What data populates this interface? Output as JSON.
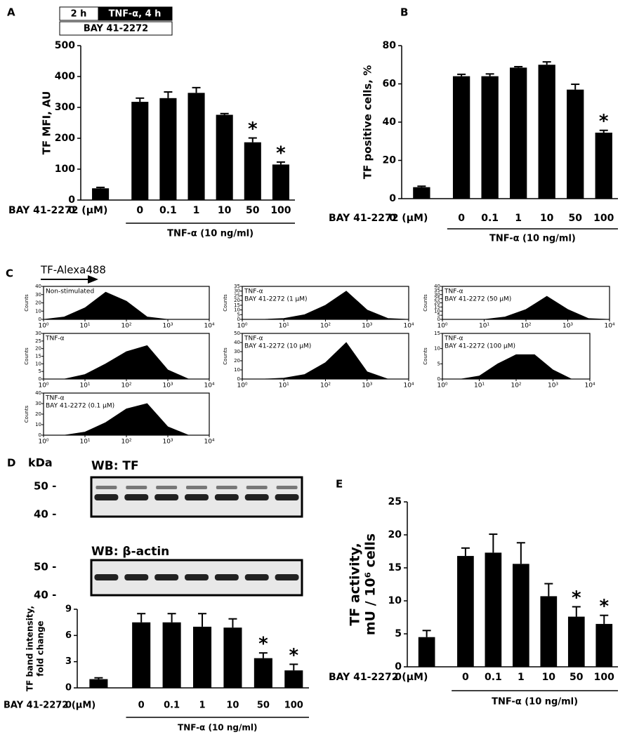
{
  "figure": {
    "panel_c_label": "C",
    "panel_c_x_label": "TF-Alexa488",
    "panel_d_label": "D",
    "kda": "kDa",
    "blot_tf": "WB: TF",
    "blot_actin": "WB: β-actin",
    "marker_50": "50 -",
    "marker_40": "40 -",
    "timeline": {
      "pre": "2 h",
      "treatment": "TNF-α, 4 h",
      "inhibitor": "BAY 41-2272"
    }
  },
  "chart_data": [
    {
      "type": "bar",
      "panel_label": "A",
      "y_label": [
        "TF MFI, AU"
      ],
      "x_label": "BAY 41-2272 (μM)",
      "group_label": "TNF-α (10 ng/ml)",
      "categories": [
        "0",
        "0",
        "0.1",
        "1",
        "10",
        "50",
        "100"
      ],
      "values": [
        38,
        318,
        330,
        347,
        276,
        187,
        115
      ],
      "errors": [
        3,
        12,
        20,
        17,
        4,
        14,
        8
      ],
      "significance": [
        null,
        null,
        null,
        null,
        null,
        "*",
        "*"
      ],
      "color": "#000000",
      "ylim": [
        0,
        500
      ],
      "yticks": [
        0,
        100,
        200,
        300,
        400,
        500
      ]
    },
    {
      "type": "bar",
      "panel_label": "B",
      "y_label": [
        "TF positive cells, %"
      ],
      "x_label": "BAY 41-2272 (μM)",
      "group_label": "TNF-α (10 ng/ml)",
      "categories": [
        "0",
        "0",
        "0.1",
        "1",
        "10",
        "50",
        "100"
      ],
      "values": [
        6,
        64,
        64,
        68.5,
        70,
        57,
        34.5
      ],
      "errors": [
        0.5,
        1,
        1.2,
        0.5,
        1.5,
        2.8,
        1.2
      ],
      "significance": [
        null,
        null,
        null,
        null,
        null,
        null,
        "*"
      ],
      "color": "#000000",
      "ylim": [
        0,
        80
      ],
      "yticks": [
        0,
        20,
        40,
        60,
        80
      ]
    },
    {
      "type": "histogram",
      "lines": [
        "Non-stimulated"
      ],
      "y_label": "Counts",
      "color": "#000000",
      "log_x": true,
      "x": [
        1,
        3.16,
        10,
        31.6,
        100,
        316,
        1000,
        3162,
        10000
      ],
      "values": [
        0,
        3,
        14,
        33,
        22,
        3,
        0,
        0,
        0
      ],
      "xlim": [
        1,
        10000
      ],
      "xticks": [
        {
          "value": 1,
          "label": "10⁰"
        },
        {
          "value": 10,
          "label": "10¹"
        },
        {
          "value": 100,
          "label": "10²"
        },
        {
          "value": 1000,
          "label": "10³"
        },
        {
          "value": 10000,
          "label": "10⁴"
        }
      ],
      "ylim": [
        0,
        40
      ],
      "yticks": [
        0,
        10,
        20,
        30,
        40
      ]
    },
    {
      "type": "histogram",
      "lines": [
        "TNF-α"
      ],
      "y_label": "Counts",
      "color": "#000000",
      "log_x": true,
      "x": [
        1,
        3.16,
        10,
        31.6,
        100,
        316,
        1000,
        3162,
        10000
      ],
      "values": [
        0,
        0,
        3,
        10,
        18,
        22,
        6,
        0,
        0
      ],
      "xlim": [
        1,
        10000
      ],
      "xticks": [
        {
          "value": 1,
          "label": "10⁰"
        },
        {
          "value": 10,
          "label": "10¹"
        },
        {
          "value": 100,
          "label": "10²"
        },
        {
          "value": 1000,
          "label": "10³"
        },
        {
          "value": 10000,
          "label": "10⁴"
        }
      ],
      "ylim": [
        0,
        30
      ],
      "yticks": [
        0,
        5,
        10,
        15,
        20,
        25,
        30
      ]
    },
    {
      "type": "histogram",
      "lines": [
        "TNF-α",
        "BAY 41-2272  (0.1 μM)"
      ],
      "y_label": "Counts",
      "color": "#000000",
      "log_x": true,
      "x": [
        1,
        3.16,
        10,
        31.6,
        100,
        316,
        1000,
        3162,
        10000
      ],
      "values": [
        0,
        0,
        3,
        12,
        25,
        30,
        8,
        0,
        0
      ],
      "xlim": [
        1,
        10000
      ],
      "xticks": [
        {
          "value": 1,
          "label": "10⁰"
        },
        {
          "value": 10,
          "label": "10¹"
        },
        {
          "value": 100,
          "label": "10²"
        },
        {
          "value": 1000,
          "label": "10³"
        },
        {
          "value": 10000,
          "label": "10⁴"
        }
      ],
      "ylim": [
        0,
        40
      ],
      "yticks": [
        0,
        10,
        20,
        30,
        40
      ]
    },
    {
      "type": "histogram",
      "lines": [
        "TNF-α",
        "BAY 41-2272  (1 μM)"
      ],
      "y_label": "Counts",
      "color": "#000000",
      "log_x": true,
      "x": [
        1,
        3.16,
        10,
        31.6,
        100,
        316,
        1000,
        3162,
        10000
      ],
      "values": [
        0,
        0,
        1,
        5,
        15,
        30,
        10,
        1,
        0
      ],
      "xlim": [
        1,
        10000
      ],
      "xticks": [
        {
          "value": 1,
          "label": "10⁰"
        },
        {
          "value": 10,
          "label": "10¹"
        },
        {
          "value": 100,
          "label": "10²"
        },
        {
          "value": 1000,
          "label": "10³"
        },
        {
          "value": 10000,
          "label": "10⁴"
        }
      ],
      "ylim": [
        0,
        35
      ],
      "yticks": [
        0,
        5,
        10,
        15,
        20,
        25,
        30,
        35
      ]
    },
    {
      "type": "histogram",
      "lines": [
        "TNF-α",
        "BAY 41-2272  (10 μM)"
      ],
      "y_label": "Counts",
      "color": "#000000",
      "log_x": true,
      "x": [
        1,
        3.16,
        10,
        31.6,
        100,
        316,
        1000,
        3162,
        10000
      ],
      "values": [
        0,
        0,
        1,
        5,
        18,
        40,
        8,
        0,
        0
      ],
      "xlim": [
        1,
        10000
      ],
      "xticks": [
        {
          "value": 1,
          "label": "10⁰"
        },
        {
          "value": 10,
          "label": "10¹"
        },
        {
          "value": 100,
          "label": "10²"
        },
        {
          "value": 1000,
          "label": "10³"
        },
        {
          "value": 10000,
          "label": "10⁴"
        }
      ],
      "ylim": [
        0,
        50
      ],
      "yticks": [
        0,
        10,
        20,
        30,
        40,
        50
      ]
    },
    {
      "type": "histogram",
      "lines": [
        "TNF-α",
        "BAY 41-2272  (50 μM)"
      ],
      "y_label": "Counts",
      "color": "#000000",
      "log_x": true,
      "x": [
        1,
        3.16,
        10,
        31.6,
        100,
        316,
        1000,
        3162,
        10000
      ],
      "values": [
        0,
        0,
        0,
        3,
        12,
        28,
        12,
        1,
        0
      ],
      "xlim": [
        1,
        10000
      ],
      "xticks": [
        {
          "value": 1,
          "label": "10⁰"
        },
        {
          "value": 10,
          "label": "10¹"
        },
        {
          "value": 100,
          "label": "10²"
        },
        {
          "value": 1000,
          "label": "10³"
        },
        {
          "value": 10000,
          "label": "10⁴"
        }
      ],
      "ylim": [
        0,
        40
      ],
      "yticks": [
        0,
        5,
        10,
        15,
        20,
        25,
        30,
        35,
        40
      ]
    },
    {
      "type": "histogram",
      "lines": [
        "TNF-α",
        "BAY 41-2272  (100 μM)"
      ],
      "y_label": "Counts",
      "color": "#000000",
      "log_x": true,
      "x": [
        1,
        3.16,
        10,
        31.6,
        100,
        316,
        1000,
        3162,
        10000
      ],
      "values": [
        0,
        0,
        1,
        5,
        8,
        8,
        3,
        0,
        0
      ],
      "xlim": [
        1,
        10000
      ],
      "xticks": [
        {
          "value": 1,
          "label": "10⁰"
        },
        {
          "value": 10,
          "label": "10¹"
        },
        {
          "value": 100,
          "label": "10²"
        },
        {
          "value": 1000,
          "label": "10³"
        },
        {
          "value": 10000,
          "label": "10⁴"
        }
      ],
      "ylim": [
        0,
        15
      ],
      "yticks": [
        0,
        5,
        10,
        15
      ]
    },
    {
      "type": "bar",
      "y_label": [
        "TF band intensity,",
        "fold change"
      ],
      "x_label": "BAY 41-2272 (μM)",
      "group_label": "TNF-α (10 ng/ml)",
      "categories": [
        "0",
        "0",
        "0.1",
        "1",
        "10",
        "50",
        "100"
      ],
      "values": [
        1.0,
        7.5,
        7.5,
        7.0,
        6.9,
        3.4,
        2.0
      ],
      "errors": [
        0.15,
        1.0,
        1.0,
        1.5,
        1.0,
        0.6,
        0.7
      ],
      "significance": [
        null,
        null,
        null,
        null,
        null,
        "*",
        "*"
      ],
      "color": "#000000",
      "ylim": [
        0,
        9
      ],
      "yticks": [
        0,
        3,
        6,
        9
      ]
    },
    {
      "type": "bar",
      "panel_label": "E",
      "y_label": [
        "TF  activity,",
        "mU / 10⁶ cells"
      ],
      "x_label": "BAY 41-2272 (μM)",
      "group_label": "TNF-α (10 ng/ml)",
      "categories": [
        "0",
        "0",
        "0.1",
        "1",
        "10",
        "50",
        "100"
      ],
      "values": [
        4.5,
        16.8,
        17.3,
        15.6,
        10.7,
        7.6,
        6.5
      ],
      "errors": [
        1,
        1.2,
        2.8,
        3.2,
        1.9,
        1.5,
        1.3
      ],
      "significance": [
        null,
        null,
        null,
        null,
        null,
        "*",
        "*"
      ],
      "color": "#000000",
      "ylim": [
        0,
        25
      ],
      "yticks": [
        0,
        5,
        10,
        15,
        20,
        25
      ]
    }
  ]
}
